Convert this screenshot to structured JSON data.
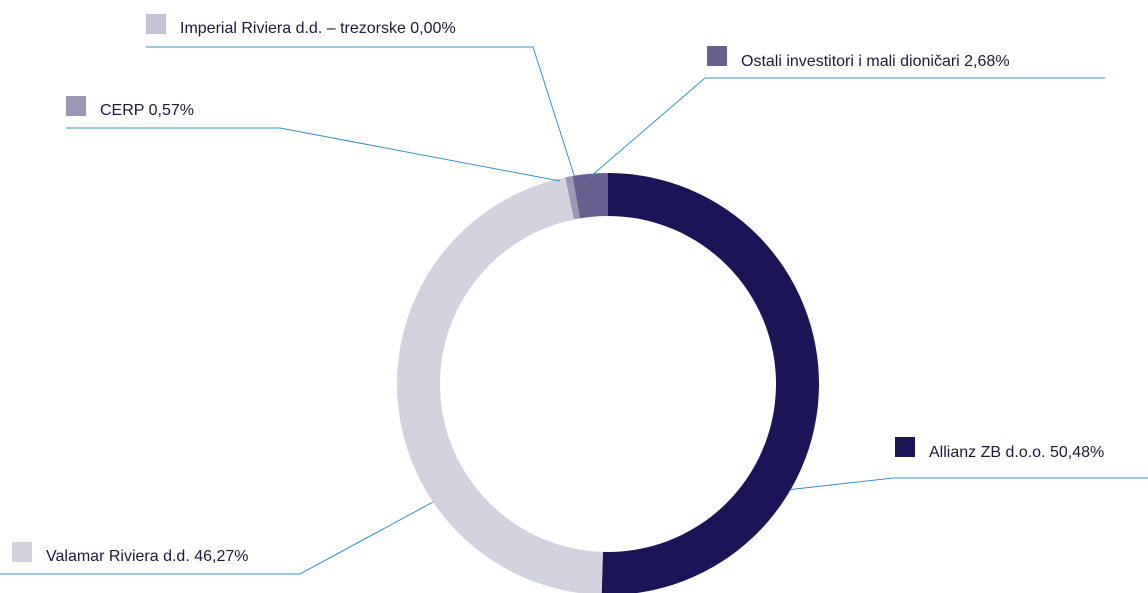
{
  "chart_data": {
    "type": "pie",
    "variant": "donut",
    "title": "",
    "legend_placement": "callouts",
    "slices": [
      {
        "label": "Allianz ZB d.o.o. 50,48%",
        "name": "Allianz ZB d.o.o.",
        "value": 50.48,
        "color": "#1b1456"
      },
      {
        "label": "Valamar Riviera d.d. 46,27%",
        "name": "Valamar Riviera d.d.",
        "value": 46.27,
        "color": "#d3d2df"
      },
      {
        "label": "CERP 0,57%",
        "name": "CERP",
        "value": 0.57,
        "color": "#9b98b6"
      },
      {
        "label": "Imperial Riviera d.d. – trezorske 0,00%",
        "name": "Imperial Riviera d.d. – trezorske",
        "value": 0.0,
        "color": "#c4c2d6"
      },
      {
        "label": "Ostali investitori i mali dioničari 2,68%",
        "name": "Ostali investitori i mali dioničari",
        "value": 2.68,
        "color": "#68618f"
      }
    ],
    "leader_line_color": "#3a8fc4"
  }
}
